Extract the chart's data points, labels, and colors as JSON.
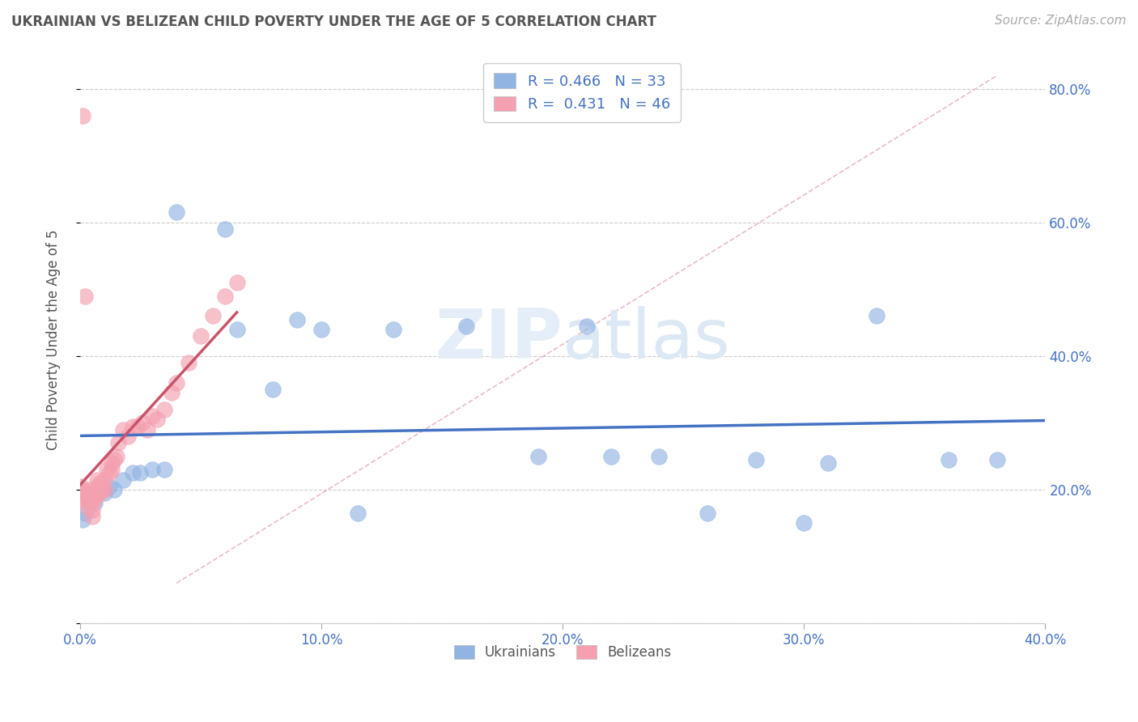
{
  "title": "UKRAINIAN VS BELIZEAN CHILD POVERTY UNDER THE AGE OF 5 CORRELATION CHART",
  "source": "Source: ZipAtlas.com",
  "ylabel": "Child Poverty Under the Age of 5",
  "xlim": [
    0.0,
    0.4
  ],
  "ylim": [
    0.0,
    0.85
  ],
  "xticks": [
    0.0,
    0.1,
    0.2,
    0.3,
    0.4
  ],
  "yticks": [
    0.0,
    0.2,
    0.4,
    0.6,
    0.8
  ],
  "xticklabels": [
    "0.0%",
    "10.0%",
    "20.0%",
    "30.0%",
    "40.0%"
  ],
  "yticklabels_right": [
    "",
    "20.0%",
    "40.0%",
    "60.0%",
    "80.0%"
  ],
  "ukrainian_color": "#92b4e3",
  "belizean_color": "#f4a0b0",
  "line_color_ukrainian": "#4472c4",
  "line_color_belizean": "#c8546a",
  "R_ukrainian": 0.466,
  "N_ukrainian": 33,
  "R_belizean": 0.431,
  "N_belizean": 46,
  "ukrainians_x": [
    0.001,
    0.002,
    0.004,
    0.006,
    0.008,
    0.01,
    0.012,
    0.014,
    0.018,
    0.022,
    0.025,
    0.03,
    0.035,
    0.04,
    0.06,
    0.065,
    0.08,
    0.09,
    0.1,
    0.115,
    0.13,
    0.16,
    0.19,
    0.21,
    0.22,
    0.24,
    0.26,
    0.28,
    0.3,
    0.31,
    0.33,
    0.36,
    0.38
  ],
  "ukrainians_y": [
    0.155,
    0.165,
    0.185,
    0.18,
    0.2,
    0.195,
    0.205,
    0.2,
    0.215,
    0.225,
    0.225,
    0.23,
    0.23,
    0.615,
    0.59,
    0.44,
    0.35,
    0.455,
    0.44,
    0.165,
    0.44,
    0.445,
    0.25,
    0.445,
    0.25,
    0.25,
    0.165,
    0.245,
    0.15,
    0.24,
    0.46,
    0.245,
    0.245
  ],
  "belizeans_x": [
    0.0005,
    0.001,
    0.001,
    0.001,
    0.002,
    0.002,
    0.003,
    0.003,
    0.003,
    0.004,
    0.004,
    0.005,
    0.005,
    0.005,
    0.006,
    0.006,
    0.007,
    0.007,
    0.008,
    0.008,
    0.009,
    0.01,
    0.01,
    0.011,
    0.012,
    0.013,
    0.013,
    0.014,
    0.015,
    0.016,
    0.018,
    0.02,
    0.022,
    0.024,
    0.026,
    0.028,
    0.03,
    0.032,
    0.035,
    0.038,
    0.04,
    0.045,
    0.05,
    0.055,
    0.06,
    0.065
  ],
  "belizeans_y": [
    0.205,
    0.76,
    0.2,
    0.195,
    0.49,
    0.185,
    0.185,
    0.195,
    0.175,
    0.2,
    0.185,
    0.16,
    0.17,
    0.185,
    0.195,
    0.185,
    0.205,
    0.215,
    0.21,
    0.195,
    0.2,
    0.215,
    0.2,
    0.23,
    0.225,
    0.23,
    0.24,
    0.245,
    0.25,
    0.27,
    0.29,
    0.28,
    0.295,
    0.295,
    0.3,
    0.29,
    0.31,
    0.305,
    0.32,
    0.345,
    0.36,
    0.39,
    0.43,
    0.46,
    0.49,
    0.51
  ]
}
